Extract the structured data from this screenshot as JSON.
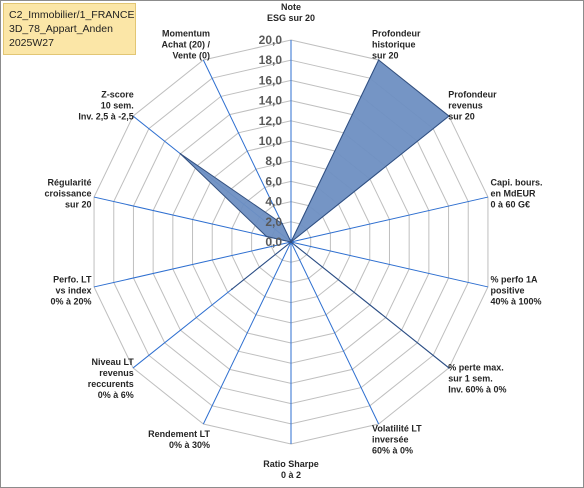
{
  "tag": {
    "lines": [
      "C2_Immobilier/1_FRANCE",
      "3D_78_Appart_Anden",
      "2025W27"
    ]
  },
  "chart_data": {
    "type": "radar",
    "rmax": 20,
    "tick_step": 2,
    "tick_labels": [
      "0,0",
      "2,0",
      "4,0",
      "6,0",
      "8,0",
      "10,0",
      "12,0",
      "14,0",
      "16,0",
      "18,0",
      "20,0"
    ],
    "grid": true,
    "fill_color": "#6e8fc2",
    "line_color": "#33507f",
    "gridline_color": "#bfbfbf",
    "axes": [
      [
        "Note",
        "ESG sur 20"
      ],
      [
        "Profondeur",
        "historique",
        "sur 20"
      ],
      [
        "Profondeur",
        "revenus",
        "sur 20"
      ],
      [
        "Capi. bours.",
        "en MdEUR",
        "0 à 60 G€"
      ],
      [
        "% perfo 1A",
        "positive",
        "40% à 100%"
      ],
      [
        "% perte max.",
        "sur 1 sem.",
        "Inv. 60% à 0%"
      ],
      [
        "Volatilité LT",
        "inversée",
        "60% à 0%"
      ],
      [
        "Ratio Sharpe",
        "0 à 2"
      ],
      [
        "Rendement LT",
        "0% à 30%"
      ],
      [
        "Niveau LT",
        "revenus",
        "reccurents",
        "0% à 6%"
      ],
      [
        "Perfo. LT",
        "vs index",
        "0% à 20%"
      ],
      [
        "Régularité",
        "croissance",
        "sur 20"
      ],
      [
        "Z-score",
        "10 sem.",
        "Inv. 2,5 à -2,5"
      ],
      [
        "Momentum",
        "Achat (20) /",
        "Vente (0)"
      ]
    ],
    "values": [
      0,
      20,
      20,
      0,
      0,
      20,
      0,
      0,
      0,
      7.5,
      0,
      2.5,
      14,
      2
    ]
  }
}
